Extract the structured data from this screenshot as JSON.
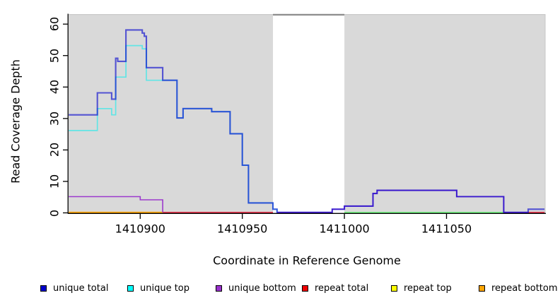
{
  "chart_data": {
    "type": "line",
    "subtype": "step-coverage",
    "title": "",
    "xlabel": "Coordinate in Reference Genome",
    "ylabel": "Read Coverage Depth",
    "xlim": [
      1410865,
      1411098
    ],
    "ylim": [
      0,
      63
    ],
    "grid": false,
    "plot_bg": "#d9d9d9",
    "masked_region": {
      "from": 1410965,
      "to": 1411000,
      "color": "#ffffff"
    },
    "xticks": [
      {
        "value": 1410900,
        "label": "1410900"
      },
      {
        "value": 1410950,
        "label": "1410950"
      },
      {
        "value": 1411000,
        "label": "1411000"
      },
      {
        "value": 1411050,
        "label": "1411050"
      }
    ],
    "yticks": [
      {
        "value": 0,
        "label": "0"
      },
      {
        "value": 10,
        "label": "10"
      },
      {
        "value": 20,
        "label": "20"
      },
      {
        "value": 30,
        "label": "30"
      },
      {
        "value": 40,
        "label": "40"
      },
      {
        "value": 50,
        "label": "50"
      },
      {
        "value": 60,
        "label": "60"
      }
    ],
    "series": [
      {
        "name": "repeat total",
        "color": "#E8112D",
        "segments": [
          {
            "points": [
              [
                1410911,
                0
              ]
            ],
            "end": 1410965
          },
          {
            "points": [
              [
                1411090,
                0
              ]
            ],
            "end": 1411098
          }
        ]
      },
      {
        "name": "repeat bottom",
        "color": "#FFA500",
        "segments": [
          {
            "points": [
              [
                1410865,
                0
              ]
            ],
            "end": 1410911
          }
        ]
      },
      {
        "name": "repeat top",
        "color": "#FFFF00",
        "segments": [
          {
            "points": [
              [
                1411000,
                0
              ]
            ],
            "end": 1411078
          }
        ]
      },
      {
        "name": "unique top",
        "color": "#00EEEE",
        "segments": [
          {
            "points": [
              [
                1410865,
                26
              ],
              [
                1410879,
                33
              ],
              [
                1410886,
                31
              ],
              [
                1410888,
                43
              ],
              [
                1410893,
                53
              ],
              [
                1410901,
                52
              ],
              [
                1410903,
                42
              ],
              [
                1410918,
                30
              ],
              [
                1410921,
                33
              ],
              [
                1410935,
                32
              ],
              [
                1410944,
                25
              ],
              [
                1410950,
                15
              ],
              [
                1410953,
                3
              ],
              [
                1410965,
                1
              ],
              [
                1410967,
                0
              ]
            ],
            "end": 1410967
          },
          {
            "points": [
              [
                1411000,
                0
              ]
            ],
            "end": 1411078
          }
        ]
      },
      {
        "name": "unique bottom",
        "color": "#9932CC",
        "segments": [
          {
            "points": [
              [
                1410865,
                5
              ],
              [
                1410900,
                4
              ],
              [
                1410911,
                0
              ]
            ],
            "end": 1410911
          },
          {
            "points": [
              [
                1410967,
                0
              ],
              [
                1410994,
                1
              ],
              [
                1411000,
                2
              ],
              [
                1411014,
                6
              ],
              [
                1411016,
                7
              ],
              [
                1411055,
                5
              ],
              [
                1411078,
                0
              ]
            ],
            "end": 1411090
          }
        ]
      },
      {
        "name": "unique total",
        "color": "#0000CD",
        "segments": [
          {
            "points": [
              [
                1410865,
                31
              ],
              [
                1410879,
                38
              ],
              [
                1410886,
                36
              ],
              [
                1410888,
                49
              ],
              [
                1410889,
                48
              ],
              [
                1410893,
                58
              ],
              [
                1410901,
                57
              ],
              [
                1410902,
                56
              ],
              [
                1410903,
                46
              ],
              [
                1410911,
                42
              ],
              [
                1410918,
                30
              ],
              [
                1410921,
                33
              ],
              [
                1410935,
                32
              ],
              [
                1410944,
                25
              ],
              [
                1410950,
                15
              ],
              [
                1410953,
                3
              ],
              [
                1410965,
                1
              ],
              [
                1410967,
                0
              ],
              [
                1410994,
                1
              ],
              [
                1411000,
                2
              ],
              [
                1411014,
                6
              ],
              [
                1411016,
                7
              ],
              [
                1411055,
                5
              ],
              [
                1411078,
                0
              ],
              [
                1411090,
                1
              ]
            ],
            "end": 1411098
          }
        ]
      }
    ],
    "legend": [
      {
        "label": "unique total",
        "color": "#0000CC"
      },
      {
        "label": "unique top",
        "color": "#00FFFF"
      },
      {
        "label": "unique bottom",
        "color": "#9932CC"
      },
      {
        "label": "repeat total",
        "color": "#EE0000"
      },
      {
        "label": "repeat top",
        "color": "#FFFF00"
      },
      {
        "label": "repeat bottom",
        "color": "#FFA500"
      }
    ],
    "legend_position": "bottom"
  }
}
